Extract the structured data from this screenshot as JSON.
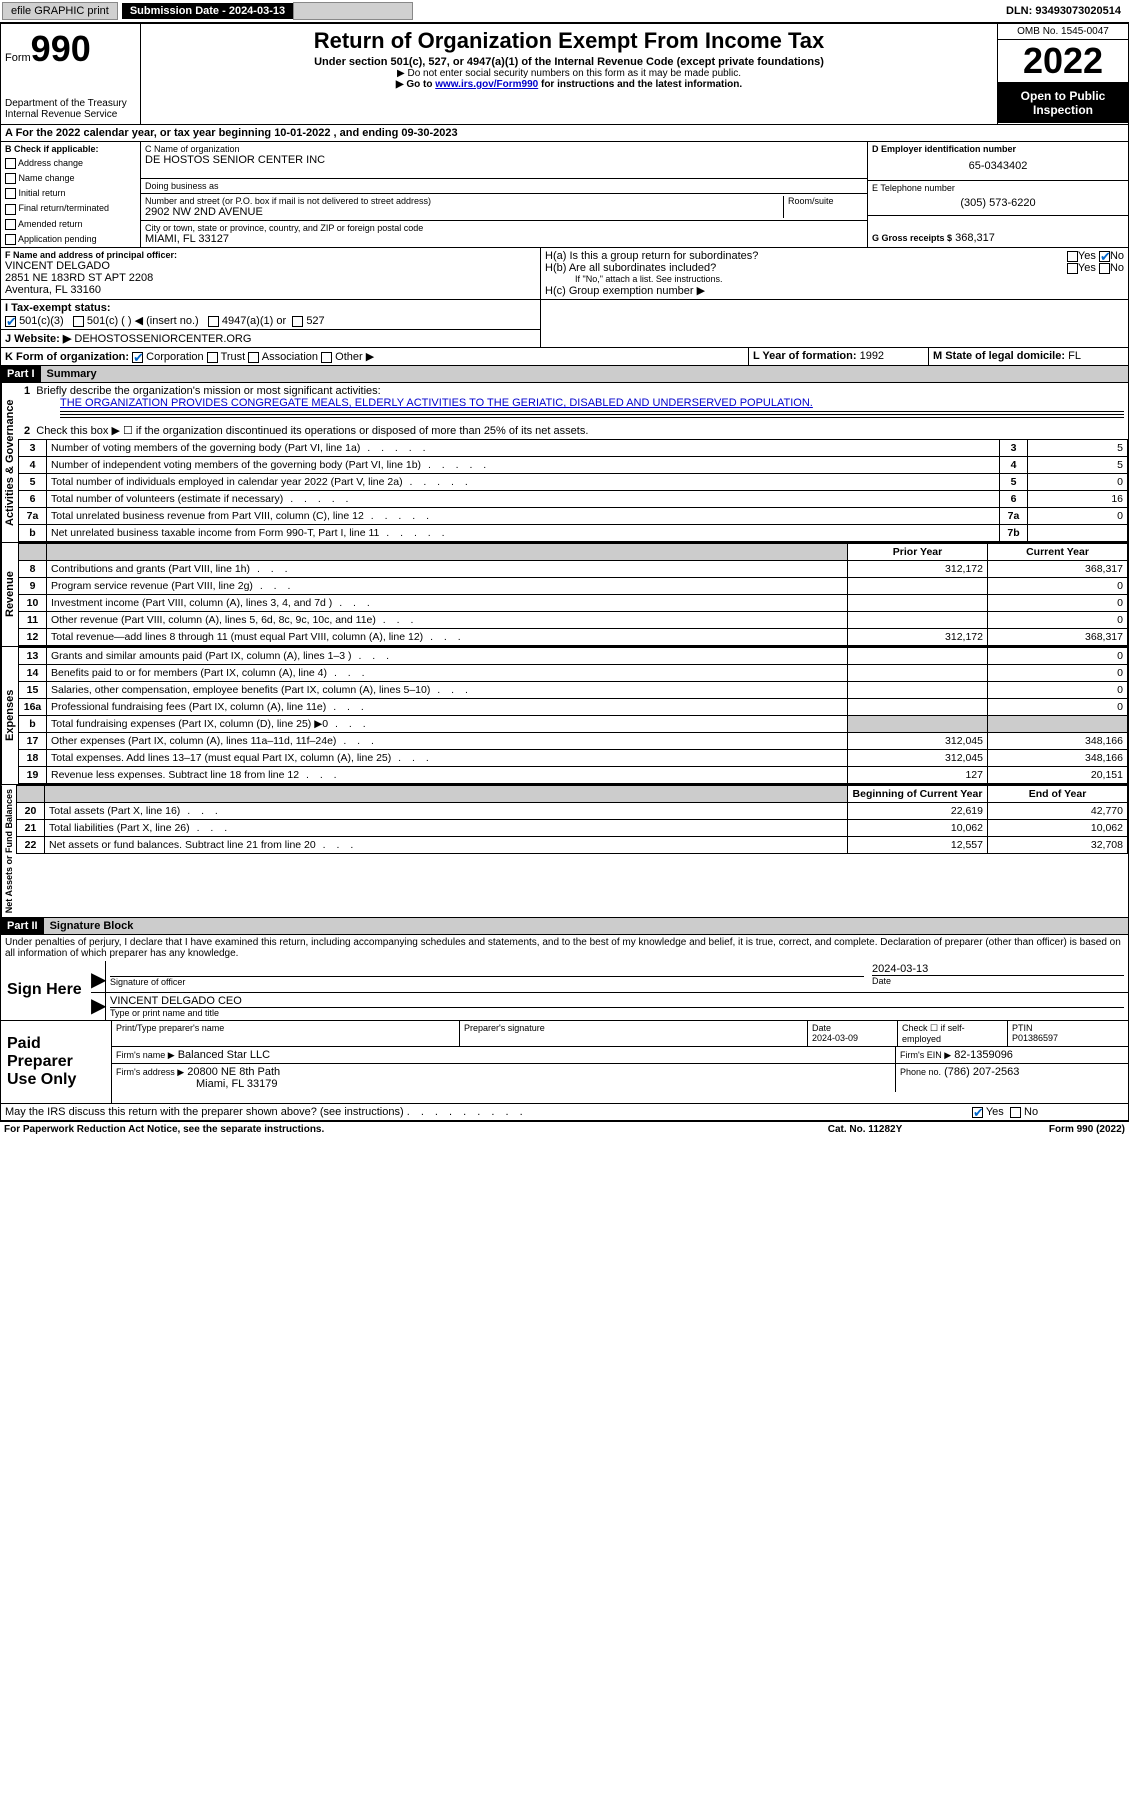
{
  "topbar": {
    "efile": "efile GRAPHIC print",
    "sub_label": "Submission Date - 2024-03-13",
    "dln": "DLN: 93493073020514"
  },
  "header": {
    "form_word": "Form",
    "form_num": "990",
    "dept": "Department of the Treasury",
    "irs": "Internal Revenue Service",
    "title": "Return of Organization Exempt From Income Tax",
    "sub1": "Under section 501(c), 527, or 4947(a)(1) of the Internal Revenue Code (except private foundations)",
    "sub2": "▶ Do not enter social security numbers on this form as it may be made public.",
    "sub3_pre": "▶ Go to ",
    "sub3_link": "www.irs.gov/Form990",
    "sub3_post": " for instructions and the latest information.",
    "omb": "OMB No. 1545-0047",
    "year": "2022",
    "open_pub": "Open to Public Inspection"
  },
  "line_a": "A For the 2022 calendar year, or tax year beginning 10-01-2022   , and ending 09-30-2023",
  "section_b": {
    "label": "B Check if applicable:",
    "opts": [
      "Address change",
      "Name change",
      "Initial return",
      "Final return/terminated",
      "Amended return",
      "Application pending"
    ]
  },
  "section_c": {
    "label": "C Name of organization",
    "name": "DE HOSTOS SENIOR CENTER INC",
    "dba_label": "Doing business as",
    "addr_label": "Number and street (or P.O. box if mail is not delivered to street address)",
    "room": "Room/suite",
    "addr": "2902 NW 2ND AVENUE",
    "city_label": "City or town, state or province, country, and ZIP or foreign postal code",
    "city": "MIAMI, FL  33127"
  },
  "section_d": {
    "label": "D Employer identification number",
    "ein": "65-0343402"
  },
  "section_e": {
    "label": "E Telephone number",
    "phone": "(305) 573-6220"
  },
  "section_g": {
    "label": "G Gross receipts $",
    "val": "368,317"
  },
  "section_f": {
    "label": "F Name and address of principal officer:",
    "name": "VINCENT DELGADO",
    "addr1": "2851 NE 183RD ST APT 2208",
    "addr2": "Aventura, FL  33160"
  },
  "section_h": {
    "ha": "H(a)  Is this a group return for subordinates?",
    "hb": "H(b)  Are all subordinates included?",
    "hb_note": "If \"No,\" attach a list. See instructions.",
    "hc": "H(c)  Group exemption number ▶",
    "yes": "Yes",
    "no": "No"
  },
  "line_i": {
    "label": "I    Tax-exempt status:",
    "o1": "501(c)(3)",
    "o2": "501(c) (   ) ◀ (insert no.)",
    "o3": "4947(a)(1) or",
    "o4": "527"
  },
  "line_j": {
    "label": "J    Website: ▶",
    "val": "DEHOSTOSSENIORCENTER.ORG"
  },
  "line_k": {
    "label": "K Form of organization:",
    "o1": "Corporation",
    "o2": "Trust",
    "o3": "Association",
    "o4": "Other ▶"
  },
  "line_l": {
    "label": "L Year of formation:",
    "val": "1992"
  },
  "line_m": {
    "label": "M State of legal domicile:",
    "val": "FL"
  },
  "part1": {
    "hdr": "Part I",
    "title": "Summary",
    "vlabels": {
      "gov": "Activities & Governance",
      "rev": "Revenue",
      "exp": "Expenses",
      "net": "Net Assets or Fund Balances"
    },
    "q1": "Briefly describe the organization's mission or most significant activities:",
    "q1_ans": "THE ORGANIZATION PROVIDES CONGREGATE MEALS, ELDERLY ACTIVITIES TO THE GERIATIC, DISABLED AND UNDERSERVED POPULATION.",
    "q2": "Check this box ▶ ☐  if the organization discontinued its operations or disposed of more than 25% of its net assets.",
    "rows_gov": [
      {
        "n": "3",
        "t": "Number of voting members of the governing body (Part VI, line 1a)",
        "box": "3",
        "v": "5"
      },
      {
        "n": "4",
        "t": "Number of independent voting members of the governing body (Part VI, line 1b)",
        "box": "4",
        "v": "5"
      },
      {
        "n": "5",
        "t": "Total number of individuals employed in calendar year 2022 (Part V, line 2a)",
        "box": "5",
        "v": "0"
      },
      {
        "n": "6",
        "t": "Total number of volunteers (estimate if necessary)",
        "box": "6",
        "v": "16"
      },
      {
        "n": "7a",
        "t": "Total unrelated business revenue from Part VIII, column (C), line 12",
        "box": "7a",
        "v": "0"
      },
      {
        "n": "b",
        "t": "Net unrelated business taxable income from Form 990-T, Part I, line 11",
        "box": "7b",
        "v": ""
      }
    ],
    "py_hdr": "Prior Year",
    "cy_hdr": "Current Year",
    "boc_hdr": "Beginning of Current Year",
    "eoy_hdr": "End of Year",
    "rows_rev": [
      {
        "n": "8",
        "t": "Contributions and grants (Part VIII, line 1h)",
        "py": "312,172",
        "cy": "368,317"
      },
      {
        "n": "9",
        "t": "Program service revenue (Part VIII, line 2g)",
        "py": "",
        "cy": "0"
      },
      {
        "n": "10",
        "t": "Investment income (Part VIII, column (A), lines 3, 4, and 7d )",
        "py": "",
        "cy": "0"
      },
      {
        "n": "11",
        "t": "Other revenue (Part VIII, column (A), lines 5, 6d, 8c, 9c, 10c, and 11e)",
        "py": "",
        "cy": "0"
      },
      {
        "n": "12",
        "t": "Total revenue—add lines 8 through 11 (must equal Part VIII, column (A), line 12)",
        "py": "312,172",
        "cy": "368,317"
      }
    ],
    "rows_exp": [
      {
        "n": "13",
        "t": "Grants and similar amounts paid (Part IX, column (A), lines 1–3 )",
        "py": "",
        "cy": "0"
      },
      {
        "n": "14",
        "t": "Benefits paid to or for members (Part IX, column (A), line 4)",
        "py": "",
        "cy": "0"
      },
      {
        "n": "15",
        "t": "Salaries, other compensation, employee benefits (Part IX, column (A), lines 5–10)",
        "py": "",
        "cy": "0"
      },
      {
        "n": "16a",
        "t": "Professional fundraising fees (Part IX, column (A), line 11e)",
        "py": "",
        "cy": "0"
      },
      {
        "n": "b",
        "t": "Total fundraising expenses (Part IX, column (D), line 25) ▶0",
        "py": "shade",
        "cy": "shade"
      },
      {
        "n": "17",
        "t": "Other expenses (Part IX, column (A), lines 11a–11d, 11f–24e)",
        "py": "312,045",
        "cy": "348,166"
      },
      {
        "n": "18",
        "t": "Total expenses. Add lines 13–17 (must equal Part IX, column (A), line 25)",
        "py": "312,045",
        "cy": "348,166"
      },
      {
        "n": "19",
        "t": "Revenue less expenses. Subtract line 18 from line 12",
        "py": "127",
        "cy": "20,151"
      }
    ],
    "rows_net": [
      {
        "n": "20",
        "t": "Total assets (Part X, line 16)",
        "py": "22,619",
        "cy": "42,770"
      },
      {
        "n": "21",
        "t": "Total liabilities (Part X, line 26)",
        "py": "10,062",
        "cy": "10,062"
      },
      {
        "n": "22",
        "t": "Net assets or fund balances. Subtract line 21 from line 20",
        "py": "12,557",
        "cy": "32,708"
      }
    ]
  },
  "part2": {
    "hdr": "Part II",
    "title": "Signature Block",
    "decl": "Under penalties of perjury, I declare that I have examined this return, including accompanying schedules and statements, and to the best of my knowledge and belief, it is true, correct, and complete. Declaration of preparer (other than officer) is based on all information of which preparer has any knowledge.",
    "sign_here": "Sign Here",
    "sig_officer": "Signature of officer",
    "sig_date_label": "Date",
    "sig_date": "2024-03-13",
    "sig_name": "VINCENT DELGADO  CEO",
    "sig_name_label": "Type or print name and title",
    "paid": "Paid Preparer Use Only",
    "prep_name_label": "Print/Type preparer's name",
    "prep_sig_label": "Preparer's signature",
    "prep_date_label": "Date",
    "prep_date": "2024-03-09",
    "check_self": "Check ☐ if self-employed",
    "ptin_label": "PTIN",
    "ptin": "P01386597",
    "firm_name_label": "Firm's name    ▶",
    "firm_name": "Balanced Star LLC",
    "firm_ein_label": "Firm's EIN ▶",
    "firm_ein": "82-1359096",
    "firm_addr_label": "Firm's address ▶",
    "firm_addr1": "20800 NE 8th Path",
    "firm_addr2": "Miami, FL  33179",
    "firm_phone_label": "Phone no.",
    "firm_phone": "(786) 207-2563",
    "may_irs": "May the IRS discuss this return with the preparer shown above? (see instructions)",
    "yes": "Yes",
    "no": "No"
  },
  "footer": {
    "pra": "For Paperwork Reduction Act Notice, see the separate instructions.",
    "cat": "Cat. No. 11282Y",
    "form": "Form 990 (2022)"
  }
}
